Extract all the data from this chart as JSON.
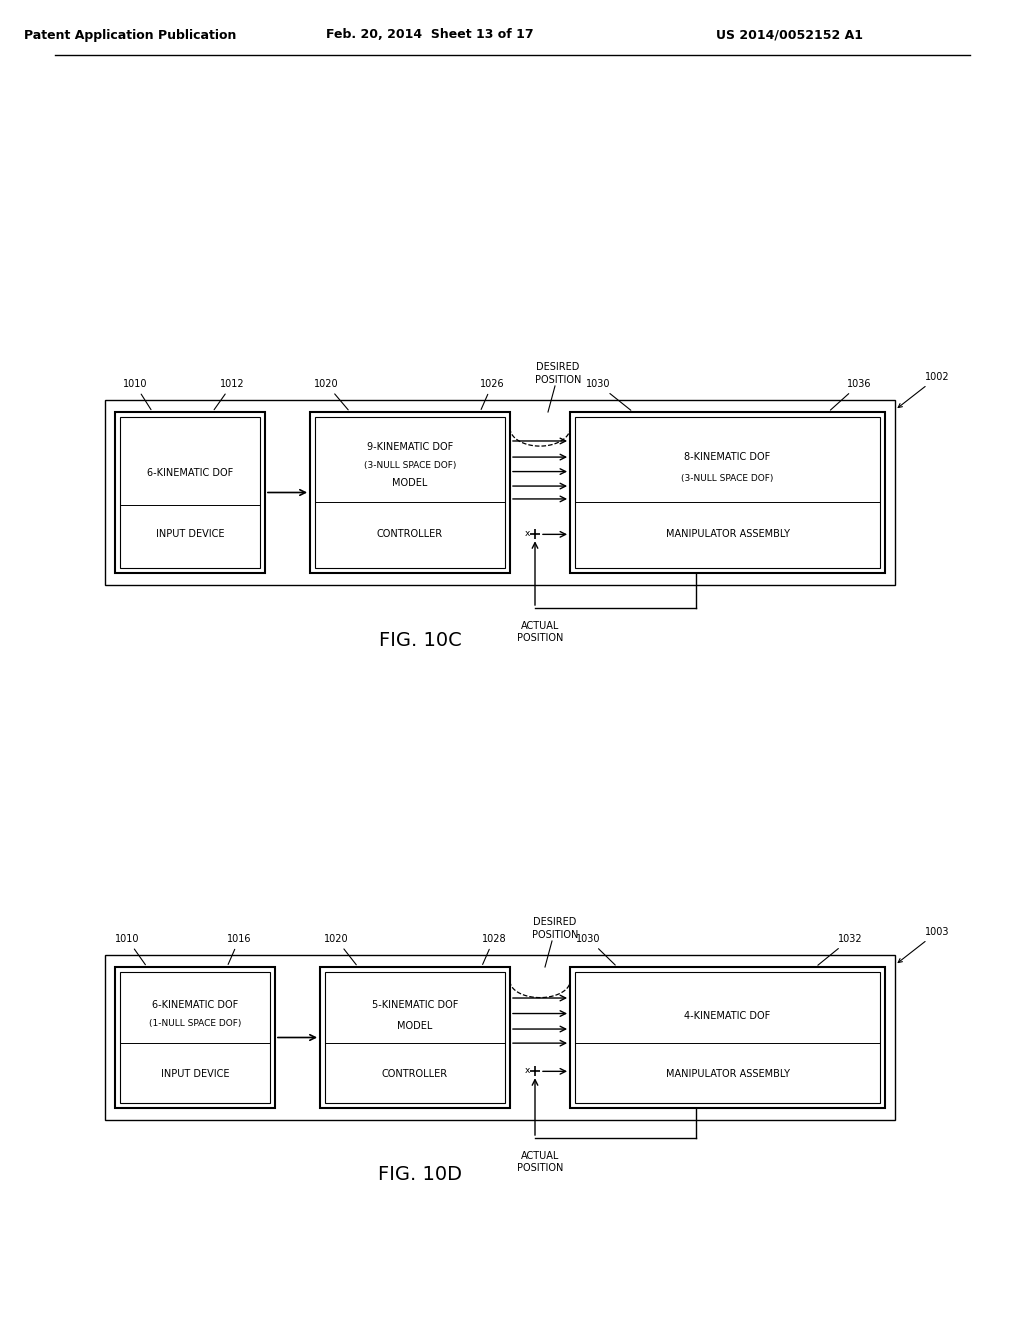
{
  "background_color": "#ffffff",
  "header_left": "Patent Application Publication",
  "header_center": "Feb. 20, 2014  Sheet 13 of 17",
  "header_right": "US 2014/0052152 A1",
  "fig10c": {
    "ref_label": "1002",
    "fig_label": "FIG. 10C",
    "box1": {
      "label": "1010",
      "sublabel": "1012",
      "top_text": "6-KINEMATIC DOF",
      "bottom_text": "INPUT DEVICE",
      "has_subtitle": false
    },
    "box2": {
      "label": "1020",
      "sublabel": "1026",
      "top_text1": "9-KINEMATIC DOF",
      "top_text2": "(3-NULL SPACE DOF)",
      "top_text3": "MODEL",
      "bottom_text": "CONTROLLER"
    },
    "box3": {
      "label": "1030",
      "sublabel": "1036",
      "top_text1": "8-KINEMATIC DOF",
      "top_text2": "(3-NULL SPACE DOF)",
      "bottom_text": "MANIPULATOR ASSEMBLY"
    },
    "desired_pos": "DESIRED\nPOSITION",
    "actual_pos": "ACTUAL\nPOSITION",
    "num_parallel_arrows": 5
  },
  "fig10d": {
    "ref_label": "1003",
    "fig_label": "FIG. 10D",
    "box1": {
      "label": "1010",
      "sublabel": "1016",
      "top_text1": "6-KINEMATIC DOF",
      "top_text2": "(1-NULL SPACE DOF)",
      "bottom_text": "INPUT DEVICE"
    },
    "box2": {
      "label": "1020",
      "sublabel": "1028",
      "top_text1": "5-KINEMATIC DOF",
      "top_text2": "MODEL",
      "bottom_text": "CONTROLLER"
    },
    "box3": {
      "label": "1030",
      "sublabel": "1032",
      "top_text1": "4-KINEMATIC DOF",
      "bottom_text": "MANIPULATOR ASSEMBLY"
    },
    "desired_pos": "DESIRED\nPOSITION",
    "actual_pos": "ACTUAL\nPOSITION",
    "num_parallel_arrows": 4
  }
}
